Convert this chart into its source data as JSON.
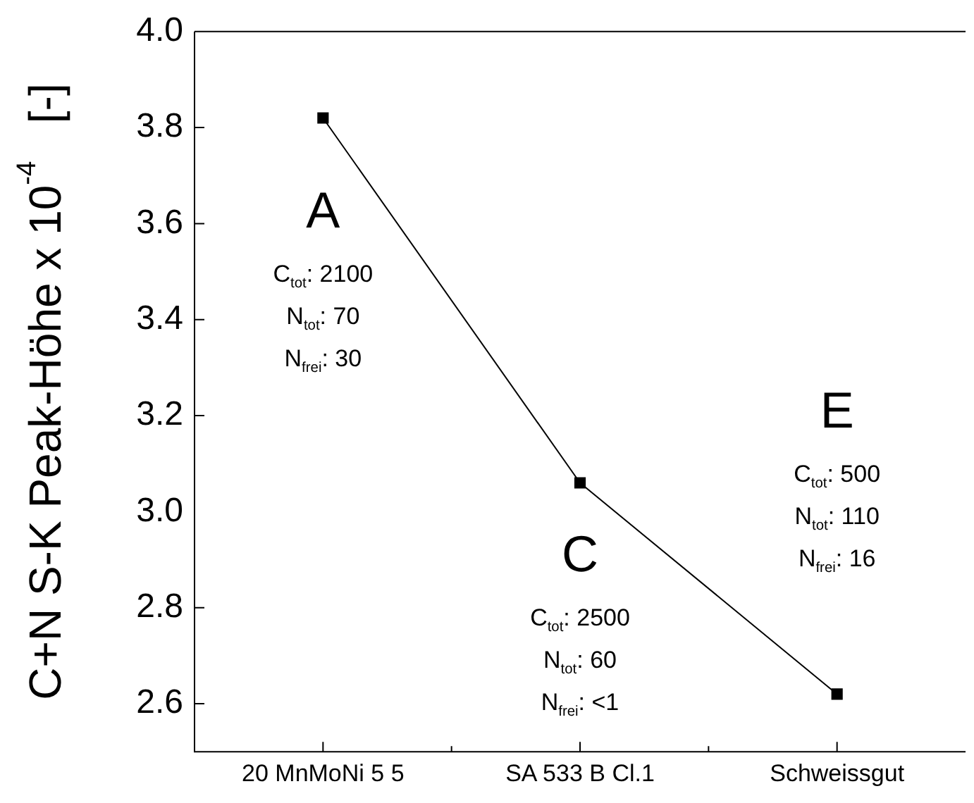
{
  "chart_data": {
    "type": "line",
    "ylabel": "C+N S-K Peak-Höhe x 10$^{-4}$   [-]",
    "categories": [
      "20 MnMoNi 5 5",
      "SA 533 B Cl.1",
      "Schweissgut"
    ],
    "series": [
      {
        "color": "#000000",
        "values": [
          3.82,
          3.06,
          2.62
        ]
      }
    ],
    "ylim": [
      2.5,
      4.0
    ],
    "yticks": [
      2.6,
      2.8,
      {
        "value": 3,
        "label": "3.0"
      },
      3.2,
      3.4,
      3.6,
      3.8,
      {
        "value": 4,
        "label": "4.0"
      }
    ],
    "marker": "square",
    "line_style": "solid",
    "grid": false,
    "legend": false,
    "annotations": [
      "A",
      "C$_{tot}$: 2100",
      "N$_{tot}$: 70",
      "N$_{frei}$: 30",
      "C",
      "C$_{tot}$: 2500",
      "N$_{tot}$: 60",
      "N$_{frei}$: <1",
      "E",
      "C$_{tot}$: 500",
      "N$_{tot}$: 110",
      "N$_{frei}$: 16"
    ]
  }
}
